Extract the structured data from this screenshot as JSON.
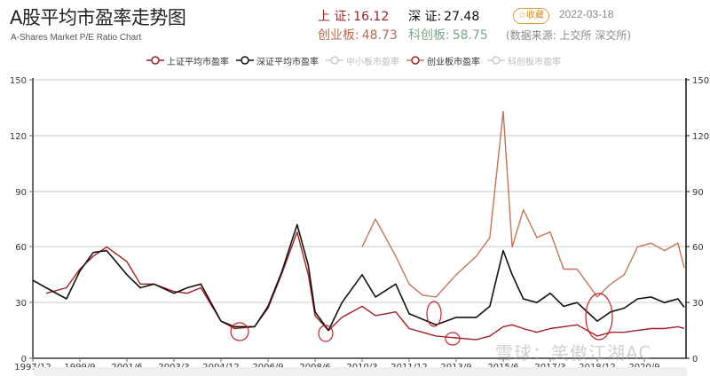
{
  "header": {
    "title": "A股平均市盈率走势图",
    "subtitle": "A-Shares Market P/E Ratio Chart",
    "stats": [
      {
        "label": "上 证:",
        "value": "16.12",
        "color": "#a11f28"
      },
      {
        "label": "深 证:",
        "value": "27.48",
        "color": "#111111"
      },
      {
        "label": "创业板:",
        "value": "48.73",
        "color": "#b86a50"
      },
      {
        "label": "科创板:",
        "value": "58.75",
        "color": "#7aa88a"
      }
    ],
    "favorite_label": "☆收藏",
    "date": "2022-03-18",
    "source": "(数据来源: 上交所 深交所)"
  },
  "legend": [
    {
      "label": "上证平均市盈率",
      "color": "#a11f28",
      "active": true
    },
    {
      "label": "深证平均市盈率",
      "color": "#111111",
      "active": true
    },
    {
      "label": "中小板市盈率",
      "color": "#cccccc",
      "active": false
    },
    {
      "label": "创业板市盈率",
      "color": "#c0755a",
      "active": true
    },
    {
      "label": "科创板市盈率",
      "color": "#cccccc",
      "active": false
    }
  ],
  "watermark": "雪球：笑傲江湖AC",
  "chart_data": {
    "type": "line",
    "title": "A股平均市盈率走势图",
    "subtitle": "A-Shares Market P/E Ratio Chart",
    "xlabel": "",
    "ylabel": "",
    "ylim": [
      0,
      150
    ],
    "yticks": [
      0,
      30,
      60,
      90,
      120,
      150
    ],
    "x_tick_labels": [
      "1997/12",
      "1999/9",
      "2001/6",
      "2003/3",
      "2004/12",
      "2006/9",
      "2008/6",
      "2010/3",
      "2011/12",
      "2013/9",
      "2015/6",
      "2017/3",
      "2018/12",
      "2020/9"
    ],
    "grid": true,
    "legend_position": "top",
    "x": [
      "1997/12",
      "1998/6",
      "1999/3",
      "1999/9",
      "2000/3",
      "2000/9",
      "2001/6",
      "2001/12",
      "2002/6",
      "2003/3",
      "2003/9",
      "2004/3",
      "2004/12",
      "2005/6",
      "2006/3",
      "2006/9",
      "2007/3",
      "2007/10",
      "2008/3",
      "2008/6",
      "2008/12",
      "2009/6",
      "2010/3",
      "2010/9",
      "2011/6",
      "2011/12",
      "2012/6",
      "2012/12",
      "2013/9",
      "2014/6",
      "2014/12",
      "2015/6",
      "2015/10",
      "2016/3",
      "2016/9",
      "2017/3",
      "2017/9",
      "2018/3",
      "2018/12",
      "2019/6",
      "2019/12",
      "2020/6",
      "2020/12",
      "2021/6",
      "2021/12",
      "2022/3"
    ],
    "series": [
      {
        "name": "上证平均市盈率",
        "color": "#a11f28",
        "values": [
          null,
          35,
          38,
          48,
          55,
          60,
          52,
          40,
          40,
          36,
          35,
          38,
          20,
          16,
          17,
          27,
          45,
          68,
          45,
          23,
          15,
          22,
          28,
          23,
          25,
          16,
          14,
          12,
          11,
          10,
          12,
          17,
          18,
          16,
          14,
          16,
          17,
          18,
          12,
          14,
          14,
          15,
          16,
          16,
          17,
          16.12
        ]
      },
      {
        "name": "深证平均市盈率",
        "color": "#111111",
        "values": [
          42,
          38,
          32,
          47,
          57,
          58,
          45,
          38,
          40,
          35,
          38,
          40,
          20,
          17,
          17,
          28,
          46,
          72,
          50,
          25,
          15,
          30,
          45,
          33,
          40,
          24,
          21,
          18,
          22,
          22,
          28,
          58,
          45,
          32,
          30,
          35,
          28,
          30,
          20,
          25,
          27,
          32,
          33,
          30,
          32,
          27.48
        ]
      },
      {
        "name": "创业板市盈率",
        "color": "#c0755a",
        "values": [
          null,
          null,
          null,
          null,
          null,
          null,
          null,
          null,
          null,
          null,
          null,
          null,
          null,
          null,
          null,
          null,
          null,
          null,
          null,
          null,
          null,
          null,
          60,
          75,
          55,
          40,
          34,
          33,
          45,
          55,
          65,
          133,
          60,
          80,
          65,
          68,
          48,
          48,
          33,
          40,
          45,
          60,
          62,
          58,
          62,
          48.73
        ]
      }
    ],
    "annotations": [
      "red circles marking market bottoms near 2005/6, 2008/12, 2012/12, 2013/9, 2018/12"
    ]
  }
}
